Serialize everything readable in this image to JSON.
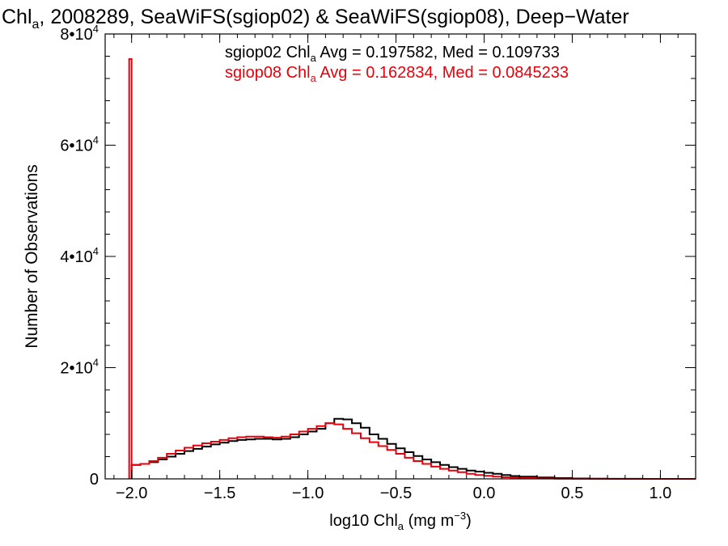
{
  "chart_data": {
    "type": "line",
    "title": {
      "prefix": "Chl",
      "sub": "a",
      "suffix": ", 2008289, SeaWiFS(sgiop02) & SeaWiFS(sgiop08), Deep−Water"
    },
    "xlabel": {
      "prefix": "log10 Chl",
      "sub": "a",
      "mid": " (mg m",
      "sup": "−3",
      "suffix": ")"
    },
    "ylabel": "Number of Observations",
    "xlim": [
      -2.15,
      1.2
    ],
    "ylim": [
      0,
      80000
    ],
    "x_ticks": [
      -2.0,
      -1.5,
      -1.0,
      -0.5,
      0.0,
      0.5,
      1.0
    ],
    "x_tick_labels": [
      "−2.0",
      "−1.5",
      "−1.0",
      "−0.5",
      "0.0",
      "0.5",
      "1.0"
    ],
    "x_minor_step": 0.1,
    "y_ticks": [
      {
        "value": 0,
        "base": "0",
        "exp": ""
      },
      {
        "value": 20000,
        "base": "2•10",
        "exp": "4"
      },
      {
        "value": 40000,
        "base": "4•10",
        "exp": "4"
      },
      {
        "value": 60000,
        "base": "6•10",
        "exp": "4"
      },
      {
        "value": 80000,
        "base": "8•10",
        "exp": "4"
      }
    ],
    "y_minor_step": 4000,
    "series": [
      {
        "color": "#000000",
        "label": {
          "prefix": "sgiop02 Chl",
          "sub": "a",
          "suffix": " Avg = 0.197582, Med = 0.109733"
        },
        "x": [
          -2.0,
          -1.95,
          -1.9,
          -1.85,
          -1.8,
          -1.75,
          -1.7,
          -1.65,
          -1.6,
          -1.55,
          -1.5,
          -1.45,
          -1.4,
          -1.35,
          -1.3,
          -1.25,
          -1.2,
          -1.15,
          -1.1,
          -1.05,
          -1.0,
          -0.95,
          -0.9,
          -0.85,
          -0.8,
          -0.75,
          -0.7,
          -0.65,
          -0.6,
          -0.55,
          -0.5,
          -0.45,
          -0.4,
          -0.35,
          -0.3,
          -0.25,
          -0.2,
          -0.15,
          -0.1,
          -0.05,
          0.0,
          0.05,
          0.1,
          0.15,
          0.2,
          0.3,
          0.4,
          0.5,
          0.6,
          0.7,
          0.8,
          0.9,
          1.0,
          1.1,
          1.2
        ],
        "y": [
          2500,
          2700,
          3000,
          3500,
          4000,
          4500,
          5000,
          5400,
          5800,
          6200,
          6500,
          6800,
          7000,
          7100,
          7200,
          7200,
          7100,
          7200,
          7500,
          8000,
          8500,
          9000,
          10000,
          10800,
          10700,
          10000,
          9200,
          8000,
          7200,
          6300,
          5500,
          4800,
          4100,
          3500,
          3000,
          2500,
          2100,
          1800,
          1500,
          1300,
          1100,
          900,
          700,
          500,
          400,
          250,
          150,
          80,
          40,
          20,
          10,
          0,
          0,
          0,
          0
        ]
      },
      {
        "color": "#e8000b",
        "label": {
          "prefix": "sgiop08 Chl",
          "sub": "a",
          "suffix": " Avg = 0.162834, Med = 0.0845233"
        },
        "x": [
          -2.0,
          -1.95,
          -1.9,
          -1.85,
          -1.8,
          -1.75,
          -1.7,
          -1.65,
          -1.6,
          -1.55,
          -1.5,
          -1.45,
          -1.4,
          -1.35,
          -1.3,
          -1.25,
          -1.2,
          -1.15,
          -1.1,
          -1.05,
          -1.0,
          -0.95,
          -0.9,
          -0.85,
          -0.8,
          -0.75,
          -0.7,
          -0.65,
          -0.6,
          -0.55,
          -0.5,
          -0.45,
          -0.4,
          -0.35,
          -0.3,
          -0.25,
          -0.2,
          -0.15,
          -0.1,
          -0.05,
          0.0,
          0.05,
          0.1,
          0.15,
          0.2,
          0.3,
          0.4,
          0.5,
          0.6,
          0.7,
          0.8,
          0.9,
          1.0,
          1.1,
          1.2
        ],
        "y": [
          2500,
          2700,
          3200,
          3800,
          4500,
          5100,
          5600,
          6000,
          6400,
          6700,
          7000,
          7300,
          7500,
          7600,
          7600,
          7500,
          7400,
          7600,
          8000,
          8500,
          9000,
          9500,
          10000,
          9800,
          9000,
          8200,
          7300,
          6600,
          5900,
          5200,
          4500,
          3800,
          3200,
          2700,
          2200,
          1800,
          1500,
          1200,
          900,
          700,
          550,
          400,
          300,
          200,
          150,
          80,
          40,
          20,
          10,
          5,
          0,
          0,
          0,
          0,
          0
        ],
        "spike": {
          "x": -2.0,
          "y": 75500
        }
      }
    ]
  }
}
